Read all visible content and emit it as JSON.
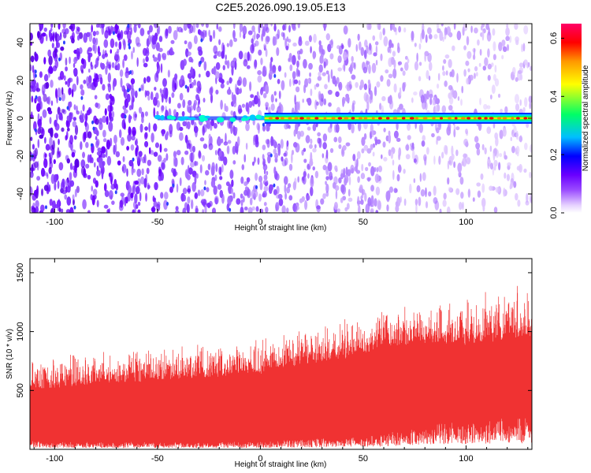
{
  "title": "C2E5.2026.090.19.05.E13",
  "colors": {
    "snr_series": "#f03232",
    "spectrogram_background": "#7a2be0",
    "colorbar_stops": [
      "#ffffff",
      "#e6d2ff",
      "#9b4dff",
      "#6a00ff",
      "#0000ff",
      "#00bfff",
      "#00ff66",
      "#ffff00",
      "#ff9900",
      "#ff0000",
      "#ff0066"
    ]
  },
  "chart_data": [
    {
      "type": "heatmap",
      "title": "",
      "xlabel": "Height of straight line (km)",
      "ylabel": "Frequency (Hz)",
      "xlim": [
        -112,
        132
      ],
      "ylim": [
        -50,
        50
      ],
      "x_ticks": [
        -100,
        -50,
        0,
        50,
        100
      ],
      "y_ticks": [
        -40,
        -20,
        0,
        20,
        40
      ],
      "colorbar": {
        "label": "Normalized spectral amplitude",
        "range": [
          0.0,
          0.65
        ],
        "ticks": [
          0.0,
          0.2,
          0.4,
          0.6
        ]
      },
      "features": {
        "signal_line_frequency_hz": 0,
        "signal_line_start_km": -50,
        "strong_signal_start_km": 2,
        "noise_trend": "noise amplitude decreases with increasing height"
      }
    },
    {
      "type": "area",
      "title": "",
      "xlabel": "Height of straight line (km)",
      "ylabel": "SNR (10 * v/v)",
      "xlim": [
        -112,
        132
      ],
      "ylim": [
        0,
        1620
      ],
      "x_ticks": [
        -100,
        -50,
        0,
        50,
        100
      ],
      "y_ticks": [
        500,
        1000,
        1500
      ],
      "series": [
        {
          "x": [
            -112,
            -100,
            -80,
            -60,
            -40,
            -20,
            0,
            20,
            40,
            60,
            80,
            100,
            120,
            132
          ],
          "envelope_high": [
            770,
            820,
            840,
            870,
            900,
            930,
            930,
            1050,
            1100,
            1200,
            1250,
            1300,
            1400,
            1420
          ],
          "dense_band_high": [
            510,
            520,
            540,
            570,
            590,
            610,
            640,
            720,
            760,
            860,
            890,
            880,
            930,
            960
          ],
          "dense_band_low": [
            80,
            60,
            60,
            60,
            60,
            60,
            60,
            80,
            100,
            120,
            200,
            230,
            250,
            260
          ]
        }
      ]
    }
  ]
}
